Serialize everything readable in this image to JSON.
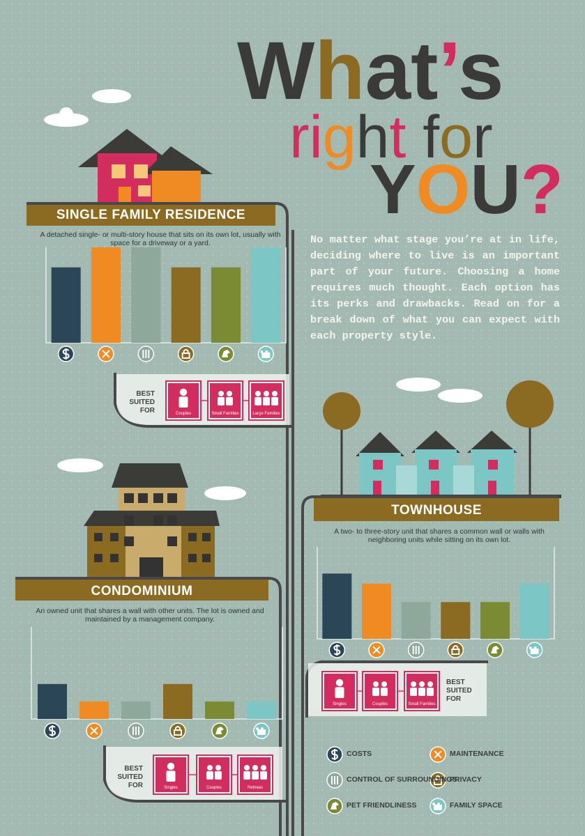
{
  "title": [
    "What’s",
    "right for",
    "YOU?"
  ],
  "intro": "No matter what stage you’re at in life, deciding where to live is an important part of your future. Choosing a home requires much thought. Each option has its perks and drawbacks. Read on for a break down of what you can expect with each property style.",
  "legend": [
    {
      "label": "COSTS",
      "color": "#2b4757"
    },
    {
      "label": "MAINTENANCE",
      "color": "#f08a22"
    },
    {
      "label": "CONTROL OF SURROUNDINGS",
      "color": "#8ea89c"
    },
    {
      "label": "PRIVACY",
      "color": "#8b6a22"
    },
    {
      "label": "PET FRIENDLINESS",
      "color": "#7a8b33"
    },
    {
      "label": "FAMILY SPACE",
      "color": "#7cc6c6"
    }
  ],
  "chart_data": [
    {
      "type": "bar",
      "title": "SINGLE FAMILY RESIDENCE",
      "description": "A detached single- or multi-story house that sits on its own lot, usually with space for a driveway or a yard.",
      "values": [
        79,
        100,
        100,
        79,
        79,
        100
      ],
      "ylim": [
        0,
        100
      ],
      "best_suited": {
        "label": "BEST SUITED FOR",
        "items": [
          "Couples",
          "Small Families",
          "Large Families"
        ]
      }
    },
    {
      "type": "bar",
      "title": "TOWNHOUSE",
      "description": "A two- to three-story unit that shares a common wall or walls with neighboring units while sitting on its own lot.",
      "values": [
        71,
        60,
        40,
        40,
        40,
        60
      ],
      "ylim": [
        0,
        100
      ],
      "best_suited": {
        "label": "BEST SUITED FOR",
        "items": [
          "Singles",
          "Couples",
          "Small Families"
        ]
      }
    },
    {
      "type": "bar",
      "title": "CONDOMINIUM",
      "description": "An owned unit that shares a wall with other units. The lot is owned and maintained by a management company.",
      "values": [
        38,
        19,
        19,
        38,
        19,
        19
      ],
      "ylim": [
        0,
        100
      ],
      "best_suited": {
        "label": "BEST SUITED FOR",
        "items": [
          "Singles",
          "Couples",
          "Retirees"
        ]
      }
    }
  ]
}
